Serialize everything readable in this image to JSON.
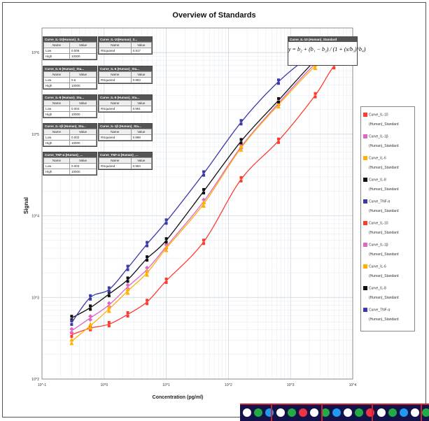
{
  "chart_data": {
    "type": "scatter",
    "title": "Overview of Standards",
    "xlabel": "Concentration (pg/ml)",
    "ylabel": "Signal",
    "x_scale": "log",
    "y_scale": "log",
    "xlim": [
      0.1,
      10000
    ],
    "ylim": [
      100,
      2000000
    ],
    "x_ticks": [
      0.1,
      1,
      10,
      100,
      1000,
      10000
    ],
    "x_tick_labels": [
      "10^-1",
      "10^0",
      "10^1",
      "10^2",
      "10^3",
      "10^4"
    ],
    "y_ticks": [
      100,
      1000,
      10000,
      100000,
      1000000
    ],
    "y_tick_labels": [
      "10^2",
      "10^3",
      "10^4",
      "10^5",
      "10^6"
    ],
    "grid": true,
    "legend_position": "right",
    "x": [
      0.3,
      0.6,
      1.2,
      2.4,
      4.9,
      10,
      40,
      160,
      640,
      2500,
      5000,
      10000
    ],
    "series": [
      {
        "name": "Curve_IL-10 (Human)_Standard",
        "color": "#ff3b30",
        "values": [
          350,
          420,
          470,
          620,
          880,
          1600,
          4800,
          28000,
          83000,
          300000,
          680000,
          1000000
        ]
      },
      {
        "name": "Curve_IL-1β (Human)_Standard",
        "color": "#e066c6",
        "values": [
          390,
          560,
          810,
          1350,
          2200,
          4200,
          15000,
          70000,
          240000,
          730000,
          1000000,
          1150000
        ]
      },
      {
        "name": "Curve_IL-6 (Human)_Standard",
        "color": "#ffb000",
        "values": [
          290,
          450,
          720,
          1200,
          2000,
          4000,
          14000,
          68000,
          230000,
          680000,
          900000,
          1100000
        ]
      },
      {
        "name": "Curve_IL-8 (Human)_Standard",
        "color": "#111111",
        "values": [
          560,
          750,
          1100,
          1650,
          3000,
          5000,
          20000,
          82000,
          260000,
          800000,
          1100000,
          1200000
        ]
      },
      {
        "name": "Curve_TNF-α (Human)_Standard",
        "color": "#3a3aa8",
        "values": [
          490,
          1000,
          1250,
          2300,
          4500,
          8500,
          33000,
          140000,
          440000,
          1000000,
          1150000,
          1250000
        ]
      }
    ]
  },
  "param_tables": [
    {
      "title": "Curve_IL-10(Human)_S...",
      "cols": [
        "Name",
        "Value"
      ],
      "rows": [
        [
          "Low",
          "0.006"
        ],
        [
          "High",
          "10000"
        ]
      ]
    },
    {
      "title": "Curve_IL-10(Human)_S...",
      "cols": [
        "Name",
        "Value"
      ],
      "rows": [
        [
          "RSquared",
          "0.917"
        ]
      ]
    },
    {
      "title": "Curve_IL-6 (Human)_Sta...",
      "cols": [
        "Name",
        "Value"
      ],
      "rows": [
        [
          "Low",
          "0.6"
        ],
        [
          "High",
          "10000"
        ]
      ]
    },
    {
      "title": "Curve_IL-6 (Human)_Sta...",
      "cols": [
        "Name",
        "Value"
      ],
      "rows": [
        [
          "RSquared",
          "0.983"
        ]
      ]
    },
    {
      "title": "Curve_IL-8 (Human)_Sta...",
      "cols": [
        "Name",
        "Value"
      ],
      "rows": [
        [
          "Low",
          "0.004"
        ],
        [
          "High",
          "10000"
        ]
      ]
    },
    {
      "title": "Curve_IL-8 (Human)_Sta...",
      "cols": [
        "Name",
        "Value"
      ],
      "rows": [
        [
          "RSquared",
          "0.991"
        ]
      ]
    },
    {
      "title": "Curve_IL-1β (Human)_Sta...",
      "cols": [
        "Name",
        "Value"
      ],
      "rows": [
        [
          "Low",
          "0.002"
        ],
        [
          "High",
          "10000"
        ]
      ]
    },
    {
      "title": "Curve_IL-1β (Human)_Sta...",
      "cols": [
        "Name",
        "Value"
      ],
      "rows": [
        [
          "RSquared",
          "0.998"
        ]
      ]
    },
    {
      "title": "Curve_TNF-α (Human)_...",
      "cols": [
        "Name",
        "Value"
      ],
      "rows": [
        [
          "Low",
          "0.003"
        ],
        [
          "High",
          "10000"
        ]
      ]
    },
    {
      "title": "Curve_TNF-α (Human)_...",
      "cols": [
        "Name",
        "Value"
      ],
      "rows": [
        [
          "RSquared",
          "0.994"
        ]
      ]
    }
  ],
  "formula": {
    "title": "Curve_IL-10 (Human)_Standard",
    "equation": "y = b₂ + (b₁ − b₂) / (1 + (x/b₃)^b₄)"
  },
  "legend": [
    {
      "line1": "Curve_IL-10",
      "line2": "(Human)_Standard",
      "color": "#ff3b30"
    },
    {
      "line1": "Curve_IL-1β",
      "line2": "(Human)_Standard",
      "color": "#e066c6"
    },
    {
      "line1": "Curve_IL-6",
      "line2": "(Human)_Standard",
      "color": "#ffb000"
    },
    {
      "line1": "Curve_IL-8",
      "line2": "(Human)_Standard",
      "color": "#111111"
    },
    {
      "line1": "Curve_TNF-α",
      "line2": "(Human)_Standard",
      "color": "#3a3aa8"
    },
    {
      "line1": "Curve_IL-10",
      "line2": "(Human)_Standard",
      "color": "#ff3b30"
    },
    {
      "line1": "Curve_IL-1β",
      "line2": "(Human)_Standard",
      "color": "#e066c6"
    },
    {
      "line1": "Curve_IL-6",
      "line2": "(Human)_Standard",
      "color": "#ffb000"
    },
    {
      "line1": "Curve_IL-8",
      "line2": "(Human)_Standard",
      "color": "#111111"
    },
    {
      "line1": "Curve_TNF-α",
      "line2": "(Human)_Standard",
      "color": "#3a3aa8"
    }
  ],
  "strip_colors": [
    "#ffffff",
    "#22aa44",
    "#2299ee",
    "#ffffff",
    "#22aa44",
    "#ee3344",
    "#ffffff",
    "#22aa44",
    "#2299ee",
    "#ffffff",
    "#22aa44",
    "#ee3344",
    "#ffffff",
    "#22aa44",
    "#2299ee",
    "#ffffff",
    "#22aa44"
  ]
}
